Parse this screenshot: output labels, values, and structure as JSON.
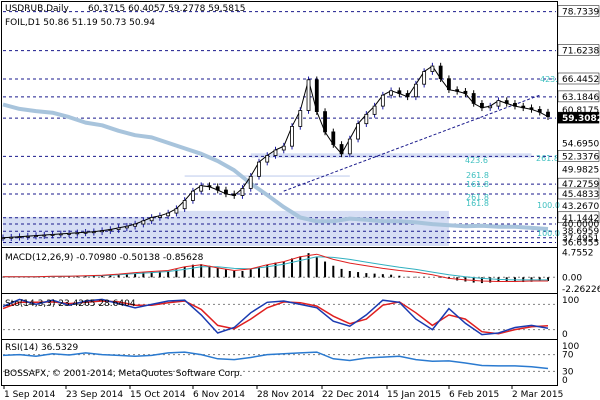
{
  "header": {
    "symbol": "USDRUB,Daily",
    "ohlc": "60.3715 60.4057 59.2778 59.5815",
    "overlay": "FOIL,D1 50.86 51.19 50.73 50.94"
  },
  "copyright": "BOSSAFX, © 2001-2014, MetaQuotes Software Corp.",
  "colors": {
    "bull": "#1a1aa0",
    "bear": "#000000",
    "overlay": "#a8c4dc",
    "support_line": "#1a1a8c",
    "fib_zone": "#c4d0f0",
    "fib_text": "#40c0c0",
    "macd_hist": "#000000",
    "macd_signal": "#30b0c0",
    "macd_main": "#e02020",
    "stoch_main": "#1a3ab0",
    "stoch_signal": "#e02020",
    "rsi": "#2a7ad0"
  },
  "chart_data": [
    {
      "type": "line",
      "name": "main-price",
      "series": [
        {
          "name": "USDRUB,Daily",
          "x": [
            0,
            2,
            4,
            6,
            8,
            10,
            12,
            14,
            16,
            18,
            20,
            22,
            24,
            26,
            28,
            30,
            32,
            34,
            36,
            38,
            40,
            42,
            44,
            46,
            48,
            50,
            52,
            54,
            56,
            58,
            60,
            62,
            64,
            66,
            68,
            70,
            72,
            74,
            76,
            78,
            80,
            82,
            84,
            86,
            88,
            90,
            92,
            94,
            96,
            98,
            100,
            102,
            104,
            106,
            108,
            110,
            112,
            114,
            116,
            118,
            120,
            122,
            124,
            126,
            128,
            130,
            132
          ],
          "values": [
            37.5,
            37.6,
            37.7,
            37.8,
            37.9,
            38.0,
            38.1,
            38.2,
            38.3,
            38.4,
            38.5,
            38.6,
            38.8,
            39.0,
            39.3,
            39.6,
            40.0,
            40.6,
            41.2,
            41.5,
            42.0,
            42.8,
            44.3,
            46.0,
            47.0,
            46.8,
            46.2,
            45.5,
            45.2,
            46.5,
            48.7,
            51.3,
            52.5,
            53.5,
            54.2,
            57.8,
            60.7,
            66.3,
            60.5,
            56.8,
            54.5,
            52.8,
            55.5,
            58.3,
            60.0,
            61.5,
            63.5,
            64.3,
            63.8,
            63.2,
            65.5,
            67.8,
            68.8,
            66.5,
            64.5,
            64.2,
            63.8,
            62.0,
            61.2,
            61.5,
            62.5,
            62.0,
            61.5,
            61.2,
            60.9,
            60.4,
            59.58
          ]
        },
        {
          "name": "FOIL,D1",
          "x": [
            0,
            4,
            8,
            12,
            16,
            20,
            24,
            28,
            32,
            36,
            40,
            44,
            48,
            52,
            56,
            60,
            64,
            68,
            72,
            76,
            80,
            84,
            88,
            92,
            96,
            100,
            104,
            108,
            112,
            116,
            120,
            124,
            128,
            132
          ],
          "values": [
            61.8,
            61.0,
            60.6,
            60.3,
            59.5,
            58.5,
            58.0,
            57.0,
            56.2,
            55.8,
            54.8,
            53.8,
            52.8,
            51.5,
            49.8,
            47.4,
            45.3,
            43.1,
            41.2,
            40.5,
            40.5,
            41.0,
            40.8,
            40.5,
            40.5,
            40.3,
            40.0,
            39.8,
            39.6,
            39.7,
            39.5,
            39.5,
            39.3,
            39.1
          ]
        }
      ],
      "price_labels": [
        "78.7339",
        "71.6238",
        "66.4452",
        "63.1846",
        "60.8175",
        "59.3082",
        "54.6950",
        "52.3376",
        "49.9825",
        "47.2759",
        "45.4833",
        "43.2670",
        "41.1442",
        "40.0000",
        "38.6959",
        "37.4951",
        "36.6355"
      ],
      "dashed_levels": [
        78.7339,
        71.6238,
        66.4452,
        63.1846,
        59.3082,
        52.3376,
        47.2759,
        45.4833,
        41.1442,
        40.0,
        38.6959,
        37.4951,
        36.6355
      ],
      "fib_labels": [
        "423.6",
        "261.8",
        "423.6",
        "261.8",
        "161.8",
        "100.0",
        "261.8",
        "161.8",
        "100.0"
      ],
      "support_line": {
        "x": [
          68,
          130
        ],
        "values": [
          46.0,
          63.5
        ]
      },
      "ylim": [
        36.0,
        80.3
      ],
      "xlim": [
        0,
        132
      ]
    },
    {
      "type": "line",
      "name": "macd",
      "title": "MACD(12,26,9) -0.70980 -0.50138 -0.85628",
      "tick_labels": [
        "4.7552",
        "0.00",
        "-2.26226"
      ],
      "ylim": [
        -2.8,
        5.2
      ],
      "xlim": [
        0,
        132
      ],
      "series": [
        {
          "name": "histogram",
          "x": [
            0,
            2,
            4,
            6,
            8,
            10,
            12,
            14,
            16,
            18,
            20,
            22,
            24,
            26,
            28,
            30,
            32,
            34,
            36,
            38,
            40,
            42,
            44,
            46,
            48,
            50,
            52,
            54,
            56,
            58,
            60,
            62,
            64,
            66,
            68,
            70,
            72,
            74,
            76,
            78,
            80,
            82,
            84,
            86,
            88,
            90,
            92,
            94,
            96,
            98,
            100,
            102,
            104,
            106,
            108,
            110,
            112,
            114,
            116,
            118,
            120,
            122,
            124,
            126,
            128,
            130,
            132
          ],
          "values": [
            0.1,
            0.1,
            0.1,
            0.1,
            0.1,
            0.1,
            0.1,
            0.2,
            0.2,
            0.2,
            0.2,
            0.3,
            0.3,
            0.4,
            0.5,
            0.6,
            0.7,
            0.9,
            1.0,
            1.1,
            1.2,
            1.5,
            2.0,
            2.4,
            2.5,
            2.2,
            1.8,
            1.5,
            1.2,
            1.2,
            1.5,
            2.0,
            2.4,
            2.8,
            3.0,
            3.6,
            4.0,
            4.6,
            3.8,
            3.0,
            2.2,
            1.6,
            1.2,
            1.0,
            0.8,
            0.7,
            0.6,
            0.5,
            0.3,
            0.1,
            0.1,
            0.1,
            0.0,
            -0.1,
            -0.3,
            -0.6,
            -0.8,
            -1.0,
            -1.1,
            -1.0,
            -0.9,
            -0.9,
            -0.9,
            -0.9,
            -0.85,
            -0.8,
            -0.71
          ]
        },
        {
          "name": "signal",
          "x": [
            0,
            4,
            8,
            12,
            16,
            20,
            24,
            28,
            32,
            36,
            40,
            44,
            48,
            52,
            56,
            60,
            64,
            68,
            72,
            76,
            80,
            84,
            88,
            92,
            96,
            100,
            104,
            108,
            112,
            116,
            120,
            124,
            128,
            132
          ],
          "values": [
            0.1,
            0.1,
            0.1,
            0.15,
            0.2,
            0.25,
            0.3,
            0.5,
            0.7,
            0.9,
            1.1,
            1.5,
            2.0,
            2.0,
            1.7,
            1.6,
            2.0,
            2.5,
            3.2,
            3.9,
            3.8,
            3.4,
            2.9,
            2.4,
            1.9,
            1.5,
            1.0,
            0.5,
            0.1,
            -0.2,
            -0.4,
            -0.5,
            -0.5,
            -0.5
          ]
        },
        {
          "name": "main",
          "x": [
            0,
            4,
            8,
            12,
            16,
            20,
            24,
            28,
            32,
            36,
            40,
            44,
            48,
            52,
            56,
            60,
            64,
            68,
            72,
            76,
            80,
            84,
            88,
            92,
            96,
            100,
            104,
            108,
            112,
            116,
            120,
            124,
            128,
            132
          ],
          "values": [
            0.1,
            0.1,
            0.1,
            0.2,
            0.2,
            0.3,
            0.4,
            0.6,
            0.9,
            1.1,
            1.3,
            2.0,
            2.4,
            1.8,
            1.3,
            1.6,
            2.4,
            3.0,
            3.9,
            4.4,
            3.4,
            2.7,
            2.2,
            1.7,
            1.3,
            1.0,
            0.5,
            -0.2,
            -0.5,
            -0.7,
            -0.8,
            -0.8,
            -0.7,
            -0.7
          ]
        }
      ]
    },
    {
      "type": "line",
      "name": "stochastic",
      "title": "Sto(14,3,3) 23.4265 28.6404",
      "tick_labels": [
        "100",
        "0"
      ],
      "ylim": [
        0,
        100
      ],
      "xlim": [
        0,
        132
      ],
      "series": [
        {
          "name": "main",
          "x": [
            0,
            4,
            8,
            12,
            16,
            20,
            24,
            28,
            32,
            36,
            40,
            44,
            48,
            52,
            56,
            60,
            64,
            68,
            72,
            76,
            80,
            84,
            88,
            92,
            96,
            100,
            104,
            108,
            112,
            116,
            120,
            124,
            128,
            132
          ],
          "values": [
            75,
            92,
            80,
            90,
            78,
            88,
            92,
            82,
            72,
            80,
            88,
            90,
            55,
            12,
            25,
            60,
            85,
            88,
            80,
            72,
            40,
            28,
            55,
            90,
            85,
            45,
            20,
            70,
            35,
            8,
            12,
            25,
            30,
            23
          ]
        },
        {
          "name": "signal",
          "x": [
            0,
            4,
            8,
            12,
            16,
            20,
            24,
            28,
            32,
            36,
            40,
            44,
            48,
            52,
            56,
            60,
            64,
            68,
            72,
            76,
            80,
            84,
            88,
            92,
            96,
            100,
            104,
            108,
            112,
            116,
            120,
            124,
            128,
            132
          ],
          "values": [
            70,
            85,
            85,
            86,
            82,
            85,
            88,
            86,
            78,
            78,
            84,
            88,
            68,
            30,
            22,
            45,
            72,
            86,
            84,
            76,
            52,
            34,
            45,
            78,
            86,
            60,
            30,
            55,
            45,
            15,
            10,
            20,
            27,
            29
          ]
        }
      ]
    },
    {
      "type": "line",
      "name": "rsi",
      "title": "RSI(14) 36.5329",
      "tick_labels": [
        "100",
        "70",
        "30",
        "0"
      ],
      "ylim": [
        0,
        100
      ],
      "xlim": [
        0,
        132
      ],
      "series": [
        {
          "name": "rsi",
          "x": [
            0,
            4,
            8,
            12,
            16,
            20,
            24,
            28,
            32,
            36,
            40,
            44,
            48,
            52,
            56,
            60,
            64,
            68,
            72,
            76,
            80,
            84,
            88,
            92,
            96,
            100,
            104,
            108,
            112,
            116,
            120,
            124,
            128,
            132
          ],
          "values": [
            68,
            70,
            66,
            72,
            69,
            74,
            70,
            68,
            66,
            68,
            74,
            76,
            70,
            60,
            58,
            63,
            70,
            72,
            74,
            76,
            60,
            56,
            62,
            64,
            66,
            58,
            54,
            55,
            50,
            44,
            43,
            43,
            41,
            37
          ]
        }
      ]
    }
  ],
  "x_axis_labels": [
    "1 Sep 2014",
    "23 Sep 2014",
    "15 Oct 2014",
    "6 Nov 2014",
    "28 Nov 2014",
    "22 Dec 2014",
    "15 Jan 2015",
    "6 Feb 2015",
    "2 Mar 2015"
  ]
}
